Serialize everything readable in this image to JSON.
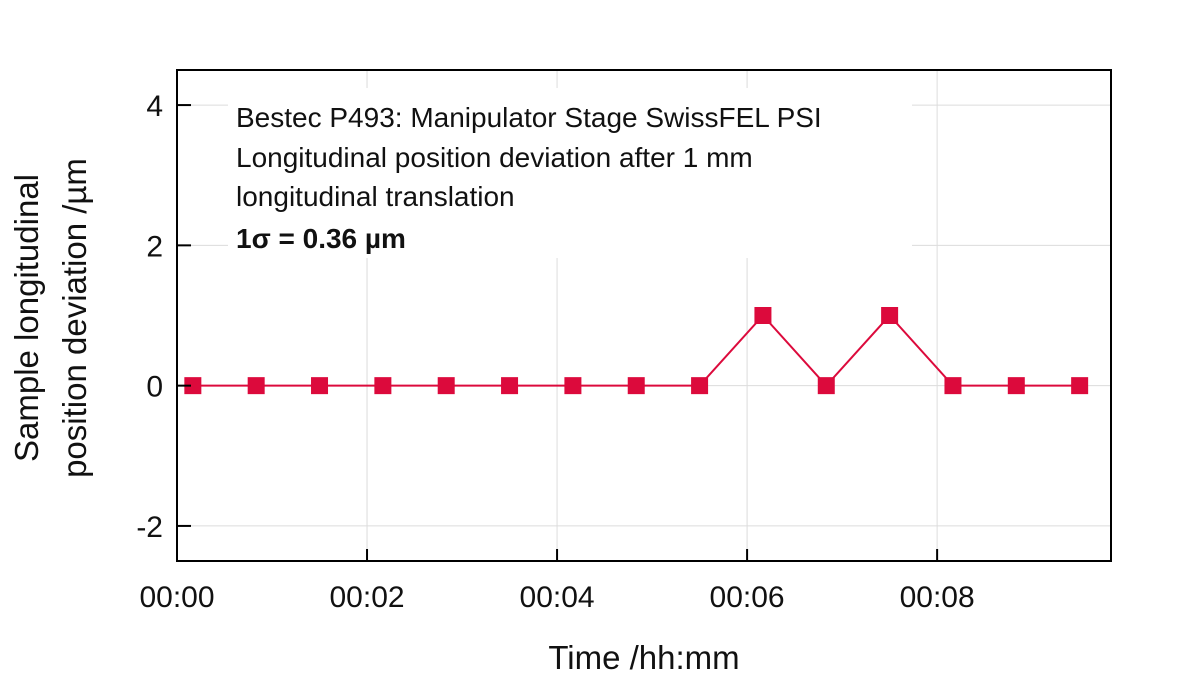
{
  "chart_data": {
    "type": "line",
    "xlabel": "Time /hh:mm",
    "ylabel_lines": [
      "Sample longitudinal",
      "position deviation /µm"
    ],
    "annotation": [
      "Bestec P493: Manipulator Stage SwissFEL PSI",
      "Longitudinal position deviation after 1 mm",
      "longitudinal translation",
      "1σ = 0.36 µm"
    ],
    "x_unit": "minutes",
    "xlim": [
      0,
      9.83
    ],
    "ylim": [
      -2.5,
      4.5
    ],
    "x_ticks": [
      0,
      2,
      4,
      6,
      8
    ],
    "x_tick_labels": [
      "00:00",
      "00:02",
      "00:04",
      "00:06",
      "00:08"
    ],
    "y_ticks": [
      -2,
      0,
      2,
      4
    ],
    "y_tick_labels": [
      "-2",
      "0",
      "2",
      "4"
    ],
    "grid": true,
    "marker": "square",
    "series": [
      {
        "color": "#dc0a3c",
        "x": [
          0.1667,
          0.8333,
          1.5,
          2.1667,
          2.8333,
          3.5,
          4.1667,
          4.8333,
          5.5,
          6.1667,
          6.8333,
          7.5,
          8.1667,
          8.8333,
          9.5
        ],
        "y": [
          0,
          0,
          0,
          0,
          0,
          0,
          0,
          0,
          0,
          1,
          0,
          1,
          0,
          0,
          0
        ]
      }
    ]
  }
}
